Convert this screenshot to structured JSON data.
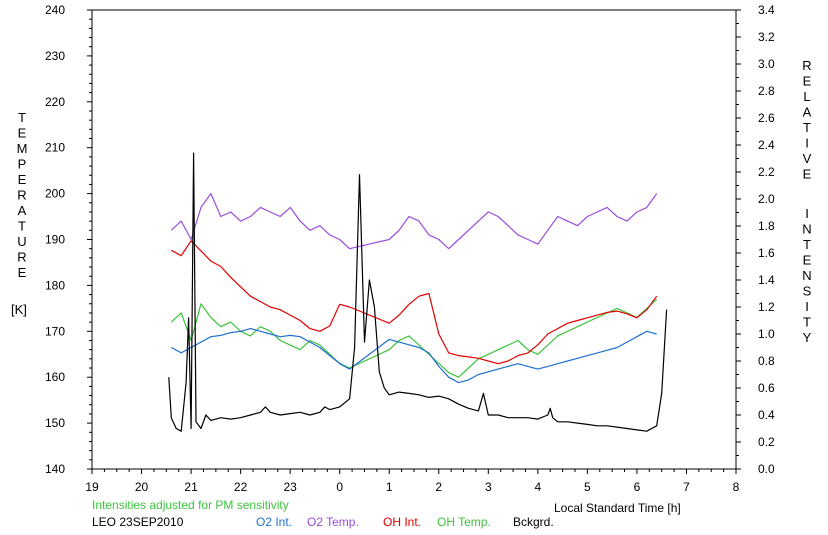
{
  "chart_data": {
    "type": "line",
    "left_axis_label_letters": [
      "T",
      "E",
      "M",
      "P",
      "E",
      "R",
      "A",
      "T",
      "U",
      "R",
      "E"
    ],
    "left_axis_unit": "[K]",
    "right_axis_label_letters_1": [
      "R",
      "E",
      "L",
      "A",
      "T",
      "I",
      "V",
      "E"
    ],
    "right_axis_label_letters_2": [
      "I",
      "N",
      "T",
      "E",
      "N",
      "S",
      "I",
      "T",
      "Y"
    ],
    "xlabel": "Local Standard Time [h]",
    "note": "Intensities adjusted for PM sensitivity",
    "site_date": "LEO 23SEP2010",
    "x_tick_labels": [
      "19",
      "20",
      "21",
      "22",
      "23",
      "0",
      "1",
      "2",
      "3",
      "4",
      "5",
      "6",
      "7",
      "8"
    ],
    "x_ticks_hours": [
      19,
      20,
      21,
      22,
      23,
      24,
      25,
      26,
      27,
      28,
      29,
      30,
      31,
      32
    ],
    "xlim": [
      19,
      32
    ],
    "ylim_left": [
      140,
      240
    ],
    "ylim_right": [
      0.0,
      3.4
    ],
    "y_left_ticks": [
      "140",
      "150",
      "160",
      "170",
      "180",
      "190",
      "200",
      "210",
      "220",
      "230",
      "240"
    ],
    "y_right_ticks": [
      "0.0",
      "0.2",
      "0.4",
      "0.6",
      "0.8",
      "1.0",
      "1.2",
      "1.4",
      "1.6",
      "1.8",
      "2.0",
      "2.2",
      "2.4",
      "2.6",
      "2.8",
      "3.0",
      "3.2",
      "3.4"
    ],
    "colors": {
      "O2 Int.": "#1f6fd1",
      "O2 Temp.": "#9b4ddb",
      "OH Int.": "#e00000",
      "OH Temp.": "#3dc43d",
      "Bckgrd.": "#000000",
      "note": "#3dc43d"
    },
    "series": [
      {
        "name": "O2 Temp.",
        "axis": "left",
        "x": [
          20.6,
          20.8,
          21.0,
          21.2,
          21.4,
          21.6,
          21.8,
          22.0,
          22.2,
          22.4,
          22.6,
          22.8,
          23.0,
          23.2,
          23.4,
          23.6,
          23.8,
          24.0,
          24.2,
          25.0,
          25.2,
          25.4,
          25.6,
          25.8,
          26.0,
          26.2,
          26.4,
          26.6,
          26.8,
          27.0,
          27.2,
          27.4,
          27.6,
          27.8,
          28.0,
          28.2,
          28.4,
          28.6,
          28.8,
          29.0,
          29.2,
          29.4,
          29.6,
          29.8,
          30.0,
          30.2,
          30.4
        ],
        "y": [
          192,
          194,
          190,
          197,
          200,
          195,
          196,
          194,
          195,
          197,
          196,
          195,
          197,
          194,
          192,
          193,
          191,
          190,
          188,
          190,
          192,
          195,
          194,
          191,
          190,
          188,
          190,
          192,
          194,
          196,
          195,
          193,
          191,
          190,
          189,
          192,
          195,
          194,
          193,
          195,
          196,
          197,
          195,
          194,
          196,
          197,
          200
        ]
      },
      {
        "name": "OH Temp.",
        "axis": "left",
        "x": [
          20.6,
          20.8,
          21.0,
          21.2,
          21.4,
          21.6,
          21.8,
          22.0,
          22.2,
          22.4,
          22.6,
          22.8,
          23.0,
          23.2,
          23.4,
          23.6,
          23.8,
          24.0,
          24.2,
          25.0,
          25.2,
          25.4,
          25.6,
          25.8,
          26.0,
          26.2,
          26.4,
          26.6,
          26.8,
          27.0,
          27.2,
          27.4,
          27.6,
          27.8,
          28.0,
          28.2,
          28.4,
          28.6,
          28.8,
          29.0,
          29.2,
          29.4,
          29.6,
          29.8,
          30.0,
          30.2,
          30.4
        ],
        "y": [
          172,
          174,
          168,
          176,
          173,
          171,
          172,
          170,
          169,
          171,
          170,
          168,
          167,
          166,
          168,
          167,
          165,
          163,
          162,
          166,
          168,
          169,
          167,
          165,
          163,
          161,
          160,
          162,
          164,
          165,
          166,
          167,
          168,
          166,
          165,
          167,
          169,
          170,
          171,
          172,
          173,
          174,
          175,
          174,
          173,
          175,
          177
        ]
      },
      {
        "name": "OH Int.",
        "axis": "right",
        "x": [
          20.6,
          20.8,
          21.0,
          21.4,
          21.6,
          21.8,
          22.0,
          22.2,
          22.4,
          22.6,
          22.8,
          23.0,
          23.2,
          23.4,
          23.6,
          23.8,
          24.0,
          24.2,
          25.0,
          25.2,
          25.4,
          25.6,
          25.8,
          26.0,
          26.2,
          26.4,
          26.6,
          26.8,
          27.0,
          27.2,
          27.4,
          27.6,
          27.8,
          28.0,
          28.2,
          28.4,
          28.6,
          28.8,
          29.0,
          29.2,
          29.4,
          29.6,
          29.8,
          30.0,
          30.2,
          30.4
        ],
        "y": [
          1.62,
          1.58,
          1.69,
          1.54,
          1.5,
          1.42,
          1.35,
          1.28,
          1.24,
          1.2,
          1.18,
          1.14,
          1.1,
          1.04,
          1.02,
          1.06,
          1.22,
          1.2,
          1.08,
          1.14,
          1.22,
          1.28,
          1.3,
          1.0,
          0.86,
          0.84,
          0.83,
          0.82,
          0.8,
          0.78,
          0.8,
          0.84,
          0.86,
          0.92,
          1.0,
          1.04,
          1.08,
          1.1,
          1.12,
          1.14,
          1.16,
          1.17,
          1.15,
          1.12,
          1.18,
          1.28
        ]
      },
      {
        "name": "O2 Int.",
        "axis": "right",
        "x": [
          20.6,
          20.8,
          21.0,
          21.4,
          21.6,
          21.8,
          22.0,
          22.2,
          22.4,
          22.6,
          22.8,
          23.0,
          23.2,
          23.4,
          23.6,
          23.8,
          24.0,
          24.2,
          25.0,
          25.2,
          25.4,
          25.6,
          25.8,
          26.0,
          26.2,
          26.4,
          26.6,
          26.8,
          27.0,
          27.2,
          27.4,
          27.6,
          27.8,
          28.0,
          28.2,
          28.4,
          28.6,
          28.8,
          29.0,
          29.2,
          29.4,
          29.6,
          29.8,
          30.0,
          30.2,
          30.4
        ],
        "y": [
          0.9,
          0.86,
          0.9,
          0.98,
          0.99,
          1.01,
          1.02,
          1.04,
          1.02,
          1.0,
          0.98,
          0.99,
          0.98,
          0.94,
          0.9,
          0.84,
          0.78,
          0.74,
          0.96,
          0.94,
          0.92,
          0.9,
          0.86,
          0.76,
          0.68,
          0.64,
          0.66,
          0.7,
          0.72,
          0.74,
          0.76,
          0.78,
          0.76,
          0.74,
          0.76,
          0.78,
          0.8,
          0.82,
          0.84,
          0.86,
          0.88,
          0.9,
          0.94,
          0.98,
          1.02,
          1.0
        ]
      },
      {
        "name": "Bckgrd.",
        "axis": "right",
        "x": [
          20.55,
          20.6,
          20.7,
          20.8,
          20.9,
          20.95,
          21.0,
          21.05,
          21.1,
          21.2,
          21.3,
          21.4,
          21.6,
          21.8,
          22.0,
          22.2,
          22.4,
          22.5,
          22.6,
          22.8,
          23.0,
          23.2,
          23.4,
          23.6,
          23.7,
          23.8,
          24.0,
          24.2,
          24.3,
          24.4,
          24.5,
          24.6,
          24.7,
          24.8,
          24.9,
          25.0,
          25.2,
          25.4,
          25.6,
          25.8,
          26.0,
          26.2,
          26.4,
          26.6,
          26.8,
          26.9,
          27.0,
          27.2,
          27.4,
          27.6,
          27.8,
          28.0,
          28.2,
          28.25,
          28.3,
          28.4,
          28.6,
          28.8,
          29.0,
          29.2,
          29.4,
          29.6,
          29.8,
          30.0,
          30.2,
          30.4,
          30.5,
          30.6
        ],
        "y": [
          0.68,
          0.38,
          0.3,
          0.28,
          0.64,
          1.12,
          0.3,
          2.34,
          0.35,
          0.3,
          0.4,
          0.36,
          0.38,
          0.37,
          0.38,
          0.4,
          0.42,
          0.46,
          0.42,
          0.4,
          0.41,
          0.42,
          0.4,
          0.42,
          0.46,
          0.44,
          0.46,
          0.52,
          0.9,
          2.18,
          0.94,
          1.4,
          1.2,
          0.72,
          0.6,
          0.55,
          0.57,
          0.56,
          0.55,
          0.53,
          0.54,
          0.52,
          0.48,
          0.45,
          0.43,
          0.56,
          0.4,
          0.4,
          0.38,
          0.38,
          0.38,
          0.37,
          0.4,
          0.45,
          0.38,
          0.35,
          0.35,
          0.34,
          0.33,
          0.32,
          0.32,
          0.31,
          0.3,
          0.29,
          0.28,
          0.32,
          0.56,
          1.18
        ]
      }
    ],
    "legend_placement": "bottom"
  }
}
